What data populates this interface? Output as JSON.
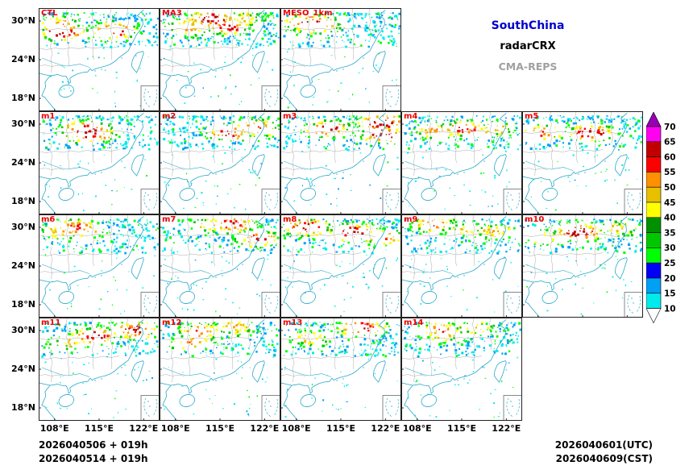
{
  "legend": {
    "items": [
      {
        "label": "SouthChina",
        "color": "#0000CD"
      },
      {
        "label": "radarCRX",
        "color": "#000000"
      },
      {
        "label": "CMA-REPS",
        "color": "#A0A0A0"
      }
    ]
  },
  "panels": [
    {
      "label": "CTL",
      "row": 0,
      "col": 0
    },
    {
      "label": "MA3",
      "row": 0,
      "col": 1
    },
    {
      "label": "MESO_1km",
      "row": 0,
      "col": 2
    },
    {
      "label": "m1",
      "row": 1,
      "col": 0
    },
    {
      "label": "m2",
      "row": 1,
      "col": 1
    },
    {
      "label": "m3",
      "row": 1,
      "col": 2
    },
    {
      "label": "m4",
      "row": 1,
      "col": 3
    },
    {
      "label": "m5",
      "row": 1,
      "col": 4
    },
    {
      "label": "m6",
      "row": 2,
      "col": 0
    },
    {
      "label": "m7",
      "row": 2,
      "col": 1
    },
    {
      "label": "m8",
      "row": 2,
      "col": 2
    },
    {
      "label": "m9",
      "row": 2,
      "col": 3
    },
    {
      "label": "m10",
      "row": 2,
      "col": 4
    },
    {
      "label": "m11",
      "row": 3,
      "col": 0
    },
    {
      "label": "m12",
      "row": 3,
      "col": 1
    },
    {
      "label": "m13",
      "row": 3,
      "col": 2
    },
    {
      "label": "m14",
      "row": 3,
      "col": 3
    }
  ],
  "axes": {
    "y_ticks": [
      "30°N",
      "24°N",
      "18°N"
    ],
    "x_ticks": [
      "108°E",
      "115°E",
      "122°E"
    ]
  },
  "colorbar": {
    "ticks": [
      "70",
      "65",
      "60",
      "55",
      "50",
      "45",
      "40",
      "35",
      "30",
      "25",
      "20",
      "15",
      "10"
    ],
    "band_colors_top_to_bottom": [
      "#9600B4",
      "#FF00F0",
      "#C00000",
      "#FF0000",
      "#FF9000",
      "#E7C000",
      "#FFFF00",
      "#009000",
      "#00C800",
      "#00FF00",
      "#0000F6",
      "#01A0F6",
      "#00ECEC",
      "#FFFFFF"
    ]
  },
  "footer": {
    "init_lines": [
      "2026040506 + 019h",
      "2026040514 + 019h"
    ],
    "valid_lines": [
      "2026040601(UTC)",
      "2026040609(CST)"
    ]
  },
  "map_colors": {
    "coastline": "#2AA9C9",
    "province_boundary": "#AAAAAA",
    "panel_label": "#F20000"
  },
  "chart_data": {
    "type": "heatmap",
    "description": "17-panel ensemble composite radar reflectivity forecast over South China (CMA-REPS members vs control and observation-style panels)",
    "panels": [
      "CTL",
      "MA3",
      "MESO_1km",
      "m1",
      "m2",
      "m3",
      "m4",
      "m5",
      "m6",
      "m7",
      "m8",
      "m9",
      "m10",
      "m11",
      "m12",
      "m13",
      "m14"
    ],
    "grid": {
      "rows": 4,
      "cols_per_row": [
        3,
        5,
        5,
        4
      ]
    },
    "x_axis": {
      "label": "longitude",
      "ticks": [
        "108°E",
        "115°E",
        "122°E"
      ],
      "range_deg": [
        105.5,
        124.5
      ]
    },
    "y_axis": {
      "label": "latitude",
      "ticks": [
        "30°N",
        "24°N",
        "18°N"
      ],
      "range_deg": [
        16,
        32
      ]
    },
    "colorbar_levels": [
      10,
      15,
      20,
      25,
      30,
      35,
      40,
      45,
      50,
      55,
      60,
      65,
      70
    ],
    "legend": [
      "SouthChina",
      "radarCRX",
      "CMA-REPS"
    ],
    "init_times": [
      "2026040506 + 019h",
      "2026040514 + 019h"
    ],
    "valid_times": [
      "2026040601(UTC)",
      "2026040609(CST)"
    ],
    "content_note": "Each panel shows a band of high reflectivity (green/yellow/orange/red echoes) across ~26-31N with scattered cyan light echoes to the south; coastlines of South China, Hainan and Taiwan in cyan; small South China Sea inset box at bottom-right of each panel."
  }
}
